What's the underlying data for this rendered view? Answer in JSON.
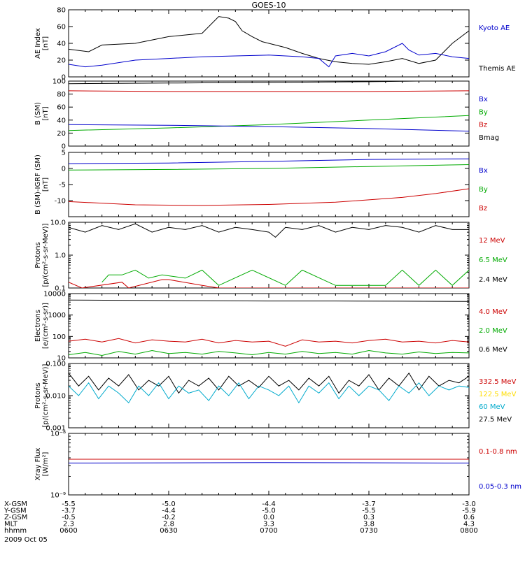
{
  "title": "GOES-10",
  "date": "2009 Oct 05",
  "chart_data": [
    {
      "type": "line",
      "ylabel": [
        "AE Index",
        "[nT]"
      ],
      "ylim": [
        0,
        80
      ],
      "yscale": "linear",
      "ticks": [
        0,
        20,
        40,
        60,
        80
      ],
      "tick_labels": [
        "0",
        "20",
        "40",
        "60",
        "80"
      ],
      "legend": [
        {
          "label": "Kyoto AE",
          "color": "#0000cc"
        },
        {
          "label": "Themis AE",
          "color": "#000000"
        }
      ],
      "series": [
        {
          "name": "Themis AE",
          "color": "#000000",
          "x": [
            0,
            6,
            10,
            20,
            30,
            40,
            45,
            48,
            50,
            52,
            55,
            58,
            60,
            65,
            70,
            75,
            80,
            85,
            90,
            95,
            100,
            105,
            110,
            115,
            120
          ],
          "y": [
            33,
            30,
            38,
            40,
            48,
            52,
            72,
            70,
            66,
            55,
            48,
            42,
            40,
            35,
            28,
            22,
            18,
            16,
            15,
            18,
            22,
            16,
            20,
            40,
            55
          ]
        },
        {
          "name": "Kyoto AE",
          "color": "#0000cc",
          "x": [
            0,
            5,
            10,
            20,
            30,
            40,
            50,
            60,
            70,
            75,
            78,
            80,
            85,
            90,
            95,
            100,
            102,
            105,
            110,
            115,
            120
          ],
          "y": [
            15,
            12,
            14,
            20,
            22,
            24,
            25,
            26,
            24,
            22,
            12,
            25,
            28,
            25,
            30,
            40,
            32,
            26,
            28,
            24,
            22
          ]
        }
      ]
    },
    {
      "type": "line",
      "ylabel": [
        "B (SM)",
        "[nT]"
      ],
      "ylim": [
        0,
        100
      ],
      "yscale": "linear",
      "ticks": [
        0,
        20,
        40,
        60,
        80,
        100
      ],
      "tick_labels": [
        "0",
        "20",
        "40",
        "60",
        "80",
        "100"
      ],
      "legend": [
        {
          "label": "Bx",
          "color": "#0000cc"
        },
        {
          "label": "By",
          "color": "#00aa00"
        },
        {
          "label": "Bz",
          "color": "#cc0000"
        },
        {
          "label": "Bmag",
          "color": "#000000"
        }
      ],
      "series": [
        {
          "name": "Bmag",
          "color": "#000000",
          "x": [
            0,
            30,
            60,
            90,
            120
          ],
          "y": [
            96,
            97,
            98,
            99,
            101
          ]
        },
        {
          "name": "Bz",
          "color": "#cc0000",
          "x": [
            0,
            30,
            60,
            90,
            120
          ],
          "y": [
            85,
            84,
            84,
            84,
            85
          ]
        },
        {
          "name": "By",
          "color": "#00aa00",
          "x": [
            0,
            30,
            60,
            90,
            120
          ],
          "y": [
            24,
            28,
            33,
            40,
            47
          ]
        },
        {
          "name": "Bx",
          "color": "#0000cc",
          "x": [
            0,
            30,
            60,
            90,
            120
          ],
          "y": [
            33,
            32,
            30,
            27,
            23
          ]
        }
      ]
    },
    {
      "type": "line",
      "ylabel": [
        "B (SM)-IGRF (SM)",
        "[nT]"
      ],
      "ylim": [
        -15,
        5
      ],
      "yscale": "linear",
      "ticks": [
        -15,
        -10,
        -5,
        0,
        5
      ],
      "tick_labels": [
        "",
        "-10",
        "-5",
        "0",
        "5"
      ],
      "legend": [
        {
          "label": "Bx",
          "color": "#0000cc"
        },
        {
          "label": "By",
          "color": "#00aa00"
        },
        {
          "label": "Bz",
          "color": "#cc0000"
        }
      ],
      "series": [
        {
          "name": "Bx",
          "color": "#0000cc",
          "x": [
            0,
            30,
            60,
            90,
            120
          ],
          "y": [
            1.5,
            1.7,
            2.2,
            2.8,
            3.0
          ]
        },
        {
          "name": "By",
          "color": "#00aa00",
          "x": [
            0,
            30,
            60,
            90,
            120
          ],
          "y": [
            -0.5,
            -0.3,
            0.0,
            0.6,
            1.2
          ]
        },
        {
          "name": "Bz",
          "color": "#cc0000",
          "x": [
            0,
            20,
            40,
            60,
            80,
            100,
            110,
            120
          ],
          "y": [
            -10.3,
            -11.3,
            -11.5,
            -11.2,
            -10.5,
            -9.0,
            -7.8,
            -6.3
          ]
        }
      ]
    },
    {
      "type": "line",
      "ylabel": [
        "Protons",
        "[p/(cm²-s-sr-MeV)]"
      ],
      "ylim": [
        0.1,
        10
      ],
      "yscale": "log",
      "ticks": [
        0.1,
        1,
        10
      ],
      "tick_labels": [
        "0.1",
        "1.0",
        "10.0"
      ],
      "legend": [
        {
          "label": "12 MeV",
          "color": "#cc0000"
        },
        {
          "label": "6.5 MeV",
          "color": "#00aa00"
        },
        {
          "label": "2.4 MeV",
          "color": "#000000"
        }
      ],
      "series": [
        {
          "name": "2.4 MeV",
          "color": "#000000",
          "x": [
            0,
            5,
            10,
            15,
            20,
            25,
            30,
            35,
            40,
            45,
            50,
            55,
            60,
            62,
            65,
            70,
            75,
            80,
            85,
            90,
            95,
            100,
            105,
            110,
            115,
            120
          ],
          "y": [
            7,
            5,
            8,
            6,
            9,
            5,
            7,
            6,
            8,
            5,
            7,
            6,
            5,
            3.5,
            7,
            6,
            8,
            5,
            7,
            6,
            8,
            7,
            5,
            8,
            6,
            6
          ]
        },
        {
          "name": "6.5 MeV",
          "color": "#00aa00",
          "x": [
            10,
            12,
            16,
            20,
            24,
            28,
            35,
            40,
            45,
            55,
            65,
            70,
            80,
            85,
            90,
            95,
            100,
            105,
            110,
            115,
            120
          ],
          "y": [
            0.15,
            0.25,
            0.25,
            0.35,
            0.2,
            0.25,
            0.2,
            0.35,
            0.12,
            0.35,
            0.12,
            0.35,
            0.12,
            0.12,
            0.12,
            0.12,
            0.35,
            0.12,
            0.35,
            0.12,
            0.35
          ]
        },
        {
          "name": "12 MeV",
          "color": "#cc0000",
          "x": [
            0,
            4,
            16,
            18,
            28,
            30,
            40,
            45,
            50,
            60,
            70,
            75,
            80,
            90,
            100,
            110,
            120
          ],
          "y": [
            0.15,
            0.1,
            0.15,
            0.1,
            0.18,
            0.18,
            0.12,
            0.1,
            0.1,
            0.1,
            0.1,
            0.1,
            0.1,
            0.1,
            0.1,
            0.1,
            0.1
          ]
        }
      ]
    },
    {
      "type": "line",
      "ylabel": [
        "Electrons",
        "[e/(cm²-s-sr)]"
      ],
      "ylim": [
        10,
        10000
      ],
      "yscale": "log",
      "ticks": [
        10,
        100,
        1000,
        10000
      ],
      "tick_labels": [
        "10",
        "100",
        "1000",
        "10000"
      ],
      "legend": [
        {
          "label": "4.0 MeV",
          "color": "#cc0000"
        },
        {
          "label": "2.0 MeV",
          "color": "#00aa00"
        },
        {
          "label": "0.6 MeV",
          "color": "#000000"
        }
      ],
      "series": [
        {
          "name": "0.6 MeV",
          "color": "#000000",
          "x": [
            0,
            20,
            40,
            60,
            80,
            100,
            120
          ],
          "y": [
            5000,
            4800,
            4600,
            4500,
            4500,
            4400,
            4300
          ]
        },
        {
          "name": "4.0 MeV",
          "color": "#cc0000",
          "x": [
            0,
            5,
            10,
            15,
            20,
            25,
            30,
            35,
            40,
            45,
            50,
            55,
            60,
            65,
            70,
            75,
            80,
            85,
            90,
            95,
            100,
            105,
            110,
            115,
            120
          ],
          "y": [
            60,
            75,
            55,
            80,
            50,
            70,
            60,
            55,
            75,
            50,
            65,
            55,
            60,
            35,
            70,
            55,
            60,
            50,
            65,
            75,
            55,
            60,
            50,
            65,
            55
          ]
        },
        {
          "name": "2.0 MeV",
          "color": "#00aa00",
          "x": [
            0,
            5,
            10,
            15,
            20,
            25,
            30,
            35,
            40,
            45,
            50,
            55,
            60,
            65,
            70,
            75,
            80,
            85,
            90,
            95,
            100,
            105,
            110,
            115,
            120
          ],
          "y": [
            14,
            18,
            13,
            20,
            15,
            22,
            16,
            18,
            15,
            20,
            17,
            14,
            18,
            15,
            20,
            16,
            18,
            15,
            22,
            17,
            15,
            19,
            16,
            18,
            17
          ]
        }
      ]
    },
    {
      "type": "line",
      "ylabel": [
        "Protons",
        "[p/(cm²-s-sr-MeV)]"
      ],
      "ylim": [
        0.001,
        0.1
      ],
      "yscale": "log",
      "ticks": [
        0.001,
        0.01,
        0.1
      ],
      "tick_labels": [
        "0.001",
        "0.010",
        "0.100"
      ],
      "legend": [
        {
          "label": "332.5 MeV",
          "color": "#cc0000"
        },
        {
          "label": "122.5 MeV",
          "color": "#ffdd00"
        },
        {
          "label": "60 MeV",
          "color": "#00aacc"
        },
        {
          "label": "27.5 MeV",
          "color": "#000000"
        }
      ],
      "series": [
        {
          "name": "27.5 MeV",
          "color": "#000000",
          "x": [
            0,
            3,
            6,
            9,
            12,
            15,
            18,
            21,
            24,
            27,
            30,
            33,
            36,
            39,
            42,
            45,
            48,
            51,
            54,
            57,
            60,
            63,
            66,
            69,
            72,
            75,
            78,
            81,
            84,
            87,
            90,
            93,
            96,
            99,
            102,
            105,
            108,
            111,
            114,
            117,
            120
          ],
          "y": [
            0.05,
            0.02,
            0.04,
            0.015,
            0.035,
            0.02,
            0.045,
            0.015,
            0.03,
            0.02,
            0.04,
            0.012,
            0.03,
            0.02,
            0.035,
            0.015,
            0.04,
            0.02,
            0.03,
            0.018,
            0.04,
            0.02,
            0.03,
            0.015,
            0.035,
            0.02,
            0.04,
            0.012,
            0.03,
            0.02,
            0.045,
            0.015,
            0.035,
            0.02,
            0.05,
            0.015,
            0.04,
            0.02,
            0.03,
            0.025,
            0.04
          ]
        },
        {
          "name": "60 MeV",
          "color": "#00aacc",
          "x": [
            0,
            3,
            6,
            9,
            12,
            15,
            18,
            21,
            24,
            27,
            30,
            33,
            36,
            39,
            42,
            45,
            48,
            51,
            54,
            57,
            60,
            63,
            66,
            69,
            72,
            75,
            78,
            81,
            84,
            87,
            90,
            93,
            96,
            99,
            102,
            105,
            108,
            111,
            114,
            117,
            120
          ],
          "y": [
            0.02,
            0.01,
            0.025,
            0.008,
            0.02,
            0.012,
            0.006,
            0.02,
            0.01,
            0.025,
            0.008,
            0.02,
            0.012,
            0.015,
            0.007,
            0.02,
            0.01,
            0.025,
            0.008,
            0.02,
            0.015,
            0.01,
            0.02,
            0.006,
            0.02,
            0.012,
            0.025,
            0.008,
            0.02,
            0.01,
            0.02,
            0.015,
            0.007,
            0.02,
            0.012,
            0.025,
            0.01,
            0.02,
            0.015,
            0.02,
            0.018
          ]
        }
      ]
    },
    {
      "type": "line",
      "ylabel": [
        "Xray Flux",
        "[W/m²]"
      ],
      "ylim": [
        1e-09,
        1e-08
      ],
      "yscale": "log",
      "ticks": [
        1e-09,
        1e-08
      ],
      "tick_labels": [
        "10⁻⁹",
        "10⁻⁸"
      ],
      "legend": [
        {
          "label": "0.1-0.8 nm",
          "color": "#cc0000"
        },
        {
          "label": "0.05-0.3 nm",
          "color": "#0000cc"
        }
      ],
      "series": [
        {
          "name": "0.1-0.8 nm",
          "color": "#cc0000",
          "x": [
            0,
            120
          ],
          "y": [
            3.8e-09,
            3.8e-09
          ]
        },
        {
          "name": "0.05-0.3 nm",
          "color": "#0000cc",
          "x": [
            0,
            60,
            120
          ],
          "y": [
            3.3e-09,
            3.35e-09,
            3.3e-09
          ]
        }
      ]
    }
  ],
  "orbit_table": {
    "rows": [
      {
        "label": "X-GSM",
        "values": [
          "-5.5",
          "-5.0",
          "-4.4",
          "-3.7",
          "-3.0"
        ]
      },
      {
        "label": "Y-GSM",
        "values": [
          "-3.7",
          "-4.4",
          "-5.0",
          "-5.5",
          "-5.9"
        ]
      },
      {
        "label": "Z-GSM",
        "values": [
          "-0.5",
          "-0.2",
          "0.0",
          "0.3",
          "0.6"
        ]
      },
      {
        "label": "MLT",
        "values": [
          "2.3",
          "2.8",
          "3.3",
          "3.8",
          "4.3"
        ]
      },
      {
        "label": "hhmm",
        "values": [
          "0600",
          "0630",
          "0700",
          "0730",
          "0800"
        ]
      }
    ]
  }
}
